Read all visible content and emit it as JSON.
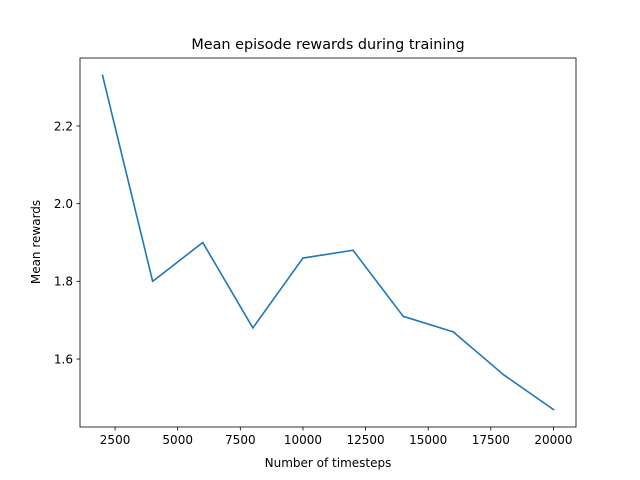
{
  "chart_data": {
    "type": "line",
    "title": "Mean episode rewards during training",
    "xlabel": "Number of timesteps",
    "ylabel": "Mean rewards",
    "xlim": [
      1100,
      20900
    ],
    "ylim": [
      1.425,
      2.375
    ],
    "xticks": [
      2500,
      5000,
      7500,
      10000,
      12500,
      15000,
      17500,
      20000
    ],
    "xtick_labels": [
      "2500",
      "5000",
      "7500",
      "10000",
      "12500",
      "15000",
      "17500",
      "20000"
    ],
    "yticks": [
      1.6,
      1.8,
      2.0,
      2.2
    ],
    "ytick_labels": [
      "1.6",
      "1.8",
      "2.0",
      "2.2"
    ],
    "grid": false,
    "series": [
      {
        "color": "#1f77b4",
        "x": [
          2000,
          4000,
          6000,
          8000,
          10000,
          12000,
          14000,
          16000,
          18000,
          20000
        ],
        "y": [
          2.33,
          1.8,
          1.9,
          1.68,
          1.86,
          1.88,
          1.71,
          1.67,
          1.56,
          1.47
        ]
      }
    ]
  }
}
